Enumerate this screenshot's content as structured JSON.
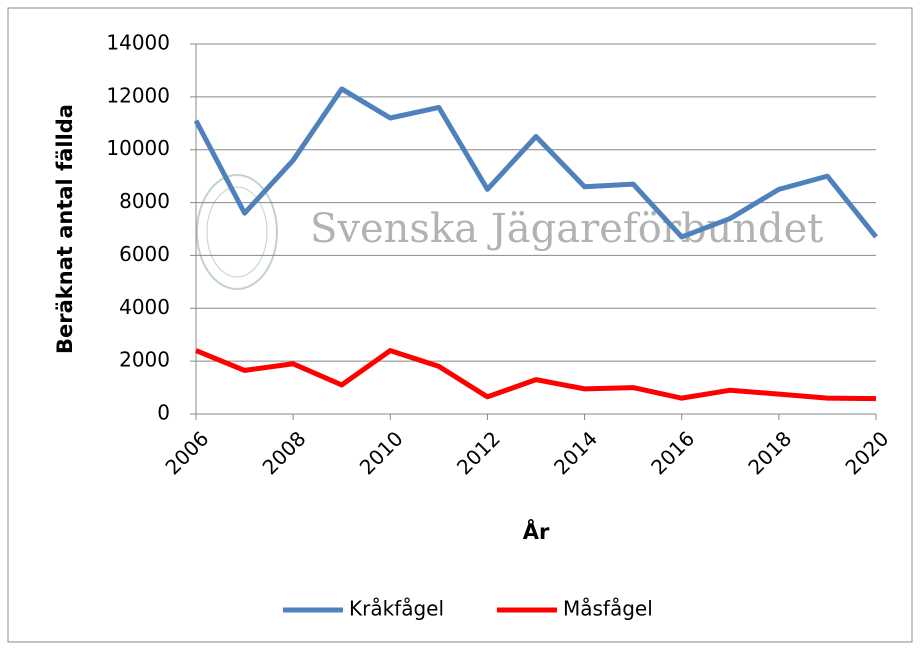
{
  "chart_data": {
    "type": "line",
    "x": [
      2006,
      2007,
      2008,
      2009,
      2010,
      2011,
      2012,
      2013,
      2014,
      2015,
      2016,
      2017,
      2018,
      2019,
      2020
    ],
    "series": [
      {
        "name": "Kråkfågel",
        "color": "#4f81bd",
        "values": [
          11100,
          7600,
          9600,
          12300,
          11200,
          11600,
          8500,
          10500,
          8600,
          8700,
          6700,
          7400,
          8500,
          9000,
          6700
        ]
      },
      {
        "name": "Måsfågel",
        "color": "#ff0000",
        "values": [
          2400,
          1650,
          1900,
          1100,
          2400,
          1800,
          650,
          1300,
          950,
          1000,
          600,
          900,
          750,
          600,
          580
        ]
      }
    ],
    "xlim": [
      2006,
      2020
    ],
    "xticks": [
      2006,
      2008,
      2010,
      2012,
      2014,
      2016,
      2018,
      2020
    ],
    "ylim": [
      0,
      14000
    ],
    "yticks": [
      0,
      2000,
      4000,
      6000,
      8000,
      10000,
      12000,
      14000
    ],
    "grid": true,
    "legend": "bottom",
    "xlabel": "År",
    "ylabel": "Beräknat antal fällda",
    "watermark": "Svenska Jägareförbundet"
  }
}
